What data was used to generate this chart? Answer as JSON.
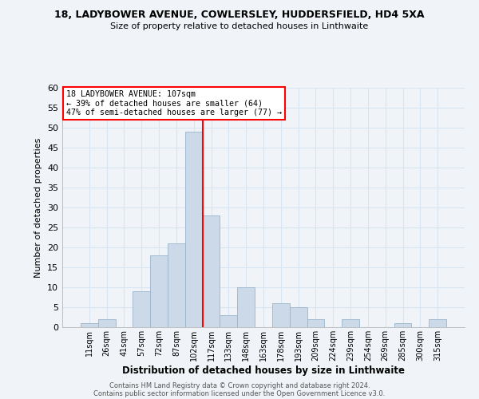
{
  "title1": "18, LADYBOWER AVENUE, COWLERSLEY, HUDDERSFIELD, HD4 5XA",
  "title2": "Size of property relative to detached houses in Linthwaite",
  "xlabel": "Distribution of detached houses by size in Linthwaite",
  "ylabel": "Number of detached properties",
  "bar_labels": [
    "11sqm",
    "26sqm",
    "41sqm",
    "57sqm",
    "72sqm",
    "87sqm",
    "102sqm",
    "117sqm",
    "133sqm",
    "148sqm",
    "163sqm",
    "178sqm",
    "193sqm",
    "209sqm",
    "224sqm",
    "239sqm",
    "254sqm",
    "269sqm",
    "285sqm",
    "300sqm",
    "315sqm"
  ],
  "bar_values": [
    1,
    2,
    0,
    9,
    18,
    21,
    49,
    28,
    3,
    10,
    0,
    6,
    5,
    2,
    0,
    2,
    0,
    0,
    1,
    0,
    2
  ],
  "bar_color": "#ccd9e8",
  "bar_edge_color": "#9ab4cc",
  "vline_x_index": 6,
  "vline_color": "red",
  "ylim": [
    0,
    60
  ],
  "yticks": [
    0,
    5,
    10,
    15,
    20,
    25,
    30,
    35,
    40,
    45,
    50,
    55,
    60
  ],
  "annotation_title": "18 LADYBOWER AVENUE: 107sqm",
  "annotation_line1": "← 39% of detached houses are smaller (64)",
  "annotation_line2": "47% of semi-detached houses are larger (77) →",
  "annotation_box_color": "white",
  "annotation_box_edge": "red",
  "footer1": "Contains HM Land Registry data © Crown copyright and database right 2024.",
  "footer2": "Contains public sector information licensed under the Open Government Licence v3.0.",
  "background_color": "#f0f4f8",
  "grid_color": "#d8e4f0"
}
